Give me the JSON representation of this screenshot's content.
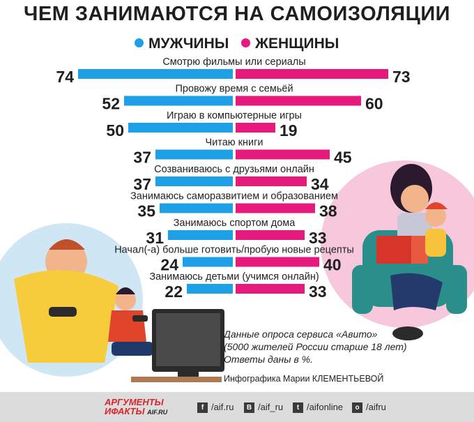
{
  "title": "ЧЕМ ЗАНИМАЮТСЯ НА САМОИЗОЛЯЦИИ",
  "colors": {
    "men": "#1ea0e6",
    "women": "#e6197d"
  },
  "chart_data": {
    "type": "bar",
    "title": "ЧЕМ ЗАНИМАЮТСЯ НА САМОИЗОЛЯЦИИ",
    "categories": [
      "Смотрю фильмы или сериалы",
      "Провожу время с семьёй",
      "Играю в компьютерные игры",
      "Читаю книги",
      "Созваниваюсь с друзьями онлайн",
      "Занимаюсь саморазвитием и образованием",
      "Занимаюсь спортом дома",
      "Начал(-а) больше готовить/пробую новые рецепты",
      "Занимаюсь детьми (учимся онлайн)"
    ],
    "series": [
      {
        "name": "МУЖЧИНЫ",
        "values": [
          74,
          52,
          50,
          37,
          37,
          35,
          31,
          24,
          22
        ]
      },
      {
        "name": "ЖЕНЩИНЫ",
        "values": [
          73,
          60,
          19,
          45,
          34,
          38,
          33,
          40,
          33
        ]
      }
    ],
    "unit": "%"
  },
  "note": {
    "line1": "Данные опроса сервиса «Авито»",
    "line2": "(5000 жителей России старше 18 лет)",
    "line3": "Ответы даны в %."
  },
  "credit": "Инфографика Марии КЛЕМЕНТЬЕВОЙ",
  "footer": {
    "logo_line1": "АРГУМЕНТЫ",
    "logo_line2": "ИФАКТЫ",
    "logo_suffix": "AIF.RU",
    "social": [
      {
        "icon": "f",
        "handle": "/aif.ru"
      },
      {
        "icon": "B",
        "handle": "/aif_ru"
      },
      {
        "icon": "t",
        "handle": "/aifonline"
      },
      {
        "icon": "o",
        "handle": "/aifru"
      }
    ]
  }
}
